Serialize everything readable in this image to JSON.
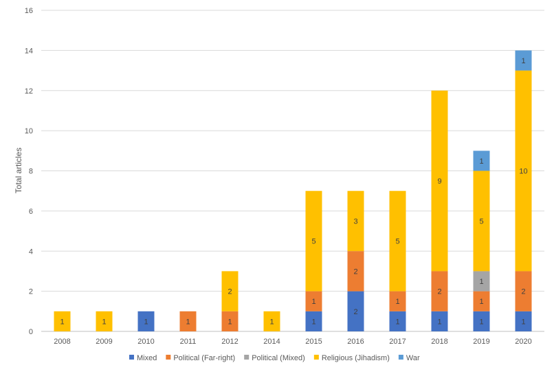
{
  "chart_data": {
    "type": "bar",
    "stacked": true,
    "title": "",
    "xlabel": "",
    "ylabel": "Total articles",
    "ylim": [
      0,
      16
    ],
    "yticks": [
      0,
      2,
      4,
      6,
      8,
      10,
      12,
      14,
      16
    ],
    "grid": true,
    "legend_position": "bottom",
    "categories": [
      "2008",
      "2009",
      "2010",
      "2011",
      "2012",
      "2014",
      "2015",
      "2016",
      "2017",
      "2018",
      "2019",
      "2020"
    ],
    "series": [
      {
        "name": "Mixed",
        "color": "#4472C4",
        "values": [
          0,
          0,
          1,
          0,
          0,
          0,
          1,
          2,
          1,
          1,
          1,
          1
        ]
      },
      {
        "name": "Political (Far-right)",
        "color": "#ED7D31",
        "values": [
          0,
          0,
          0,
          1,
          1,
          0,
          1,
          2,
          1,
          2,
          1,
          2
        ]
      },
      {
        "name": "Political (Mixed)",
        "color": "#A5A5A5",
        "values": [
          0,
          0,
          0,
          0,
          0,
          0,
          0,
          0,
          0,
          0,
          1,
          0
        ]
      },
      {
        "name": "Religious (Jihadism)",
        "color": "#FFC000",
        "values": [
          1,
          1,
          0,
          0,
          2,
          1,
          5,
          3,
          5,
          9,
          5,
          10
        ]
      },
      {
        "name": "War",
        "color": "#5B9BD5",
        "values": [
          0,
          0,
          0,
          0,
          0,
          0,
          0,
          0,
          0,
          0,
          1,
          1
        ]
      }
    ]
  }
}
